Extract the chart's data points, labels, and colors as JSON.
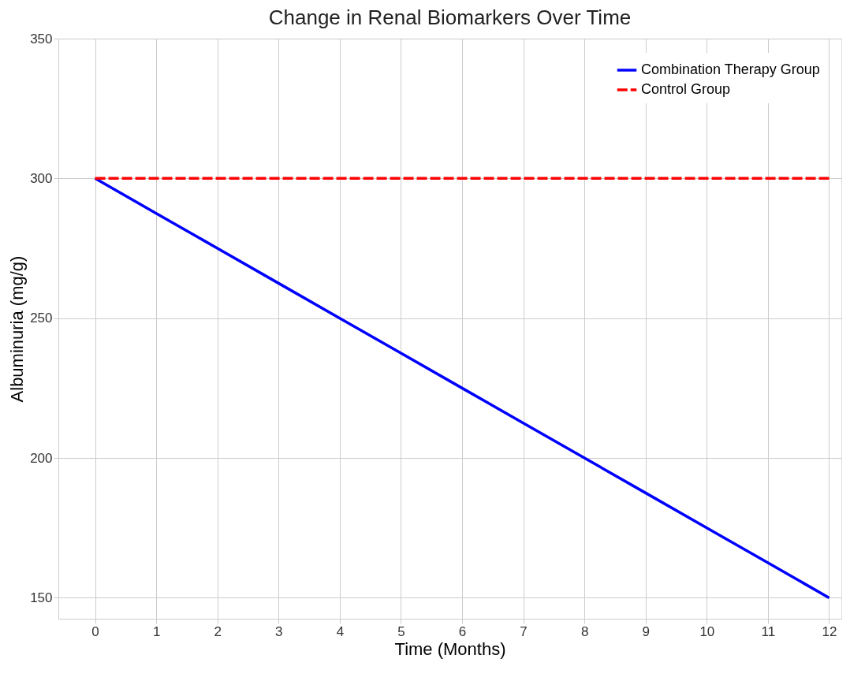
{
  "chart_data": {
    "type": "line",
    "title": "Change in Renal Biomarkers Over Time",
    "xlabel": "Time (Months)",
    "ylabel": "Albuminuria (mg/g)",
    "x": [
      0,
      1,
      2,
      3,
      4,
      5,
      6,
      7,
      8,
      9,
      10,
      11,
      12
    ],
    "series": [
      {
        "name": "Combination Therapy Group",
        "color": "#0000ff",
        "line_style": "solid",
        "values": [
          300,
          287.5,
          275,
          262.5,
          250,
          237.5,
          225,
          212.5,
          200,
          187.5,
          175,
          162.5,
          150
        ]
      },
      {
        "name": "Control Group",
        "color": "#ff0000",
        "line_style": "dashed",
        "values": [
          300,
          300,
          300,
          300,
          300,
          300,
          300,
          300,
          300,
          300,
          300,
          300,
          300
        ]
      }
    ],
    "xlim": [
      -0.6,
      12.2
    ],
    "ylim": [
      142.5,
      350
    ],
    "xticks": [
      0,
      1,
      2,
      3,
      4,
      5,
      6,
      7,
      8,
      9,
      10,
      11,
      12
    ],
    "yticks": [
      150,
      200,
      250,
      300,
      350
    ],
    "grid": true,
    "legend": "top right"
  }
}
